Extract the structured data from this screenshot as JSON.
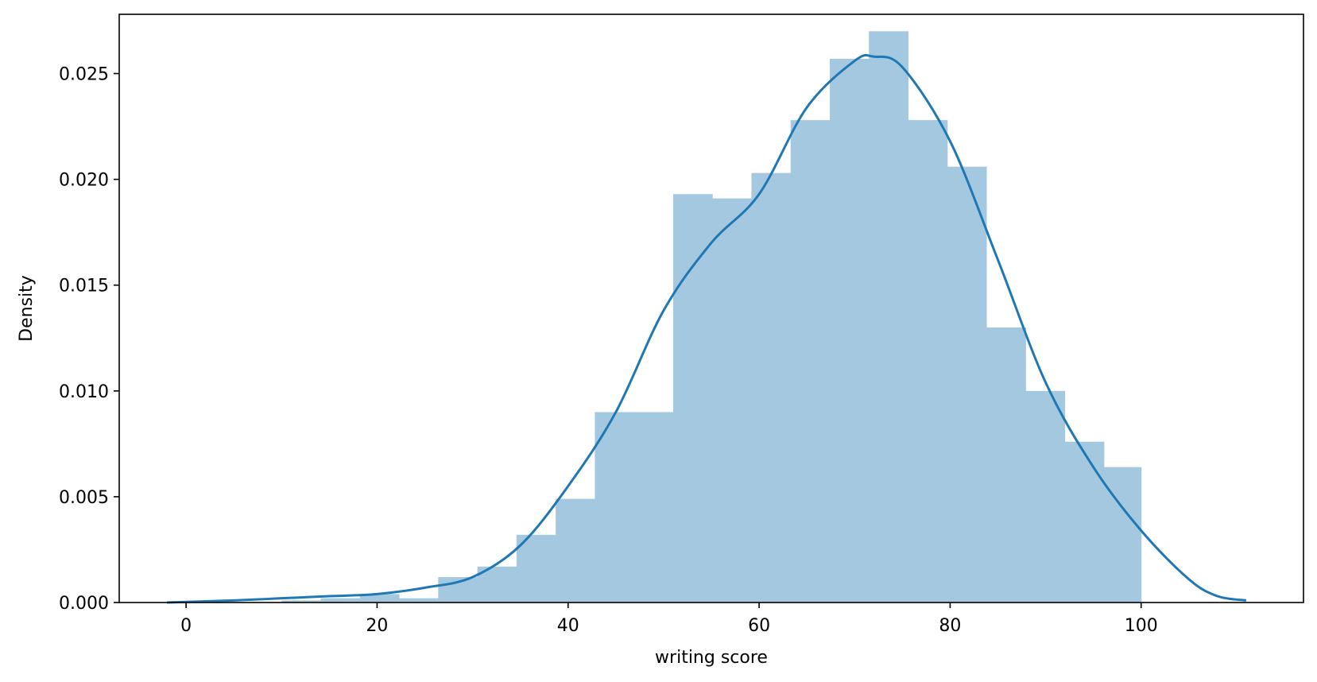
{
  "chart_data": {
    "type": "bar",
    "subtype": "histogram-with-kde",
    "xlabel": "writing score",
    "ylabel": "Density",
    "xlim": [
      -7,
      117
    ],
    "ylim": [
      0,
      0.0278
    ],
    "xticks": [
      0,
      20,
      40,
      60,
      80,
      100
    ],
    "xtick_labels": [
      "0",
      "20",
      "40",
      "60",
      "80",
      "100"
    ],
    "yticks": [
      0.0,
      0.005,
      0.01,
      0.015,
      0.02,
      0.025
    ],
    "ytick_labels": [
      "0.000",
      "0.005",
      "0.010",
      "0.015",
      "0.020",
      "0.025"
    ],
    "grid": false,
    "bar_color": "#a5c8e1",
    "line_color": "#1f77b4",
    "histogram": {
      "bin_edges": [
        10,
        14.1,
        18.2,
        22.3,
        26.4,
        30.5,
        34.6,
        38.7,
        42.8,
        46.9,
        51.0,
        55.1,
        59.2,
        63.3,
        67.4,
        71.5,
        75.6,
        79.7,
        83.8,
        87.9,
        92.0,
        96.1,
        100.0
      ],
      "density": [
        0.0001,
        0.0002,
        0.0004,
        0.0002,
        0.0012,
        0.0017,
        0.0032,
        0.0049,
        0.009,
        0.009,
        0.0193,
        0.0191,
        0.0203,
        0.0228,
        0.0257,
        0.027,
        0.0228,
        0.0206,
        0.013,
        0.01,
        0.0076,
        0.0064
      ]
    },
    "kde": {
      "x": [
        -2,
        5,
        10,
        15,
        20,
        25,
        30,
        35,
        40,
        45,
        50,
        55,
        60,
        65,
        70,
        72,
        75,
        80,
        85,
        90,
        95,
        100,
        105,
        108,
        111
      ],
      "y": [
        0.0,
        0.0001,
        0.0002,
        0.0003,
        0.0004,
        0.0007,
        0.0012,
        0.0027,
        0.0055,
        0.009,
        0.0138,
        0.017,
        0.0193,
        0.0234,
        0.0256,
        0.0258,
        0.0253,
        0.0218,
        0.0162,
        0.0104,
        0.0064,
        0.0034,
        0.0011,
        0.0003,
        0.0001
      ]
    }
  }
}
